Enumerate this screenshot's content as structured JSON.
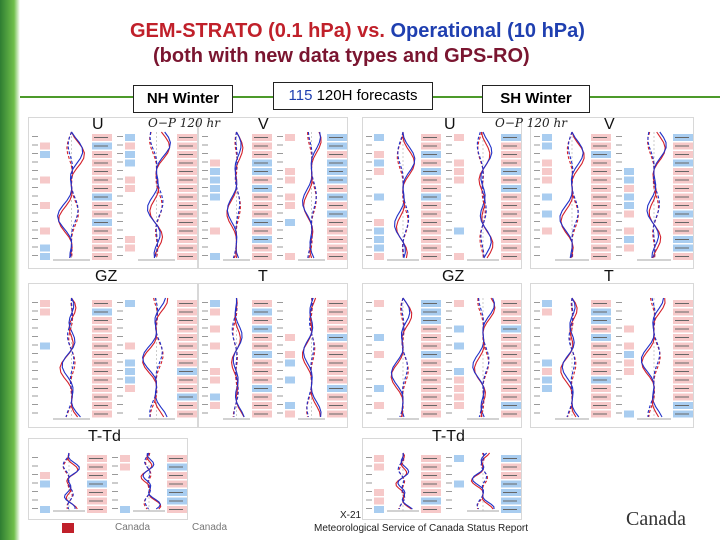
{
  "slide": {
    "title_line1_red": "GEM-STRATO (0.1 hPa)",
    "title_line1_mid": " vs. ",
    "title_line1_blue": "Operational (10 hPa)",
    "title_line2": "(both with new data types and GPS-RO)"
  },
  "labels": {
    "nh_winter": "NH Winter",
    "forecast_num": "115",
    "forecast_text": " 120H forecasts",
    "sh_winter": "SH Winter"
  },
  "panels": [
    {
      "id": "nh-u",
      "var_label": "U",
      "header_label": "O−P  120  hr"
    },
    {
      "id": "nh-v",
      "var_label": "V",
      "header_label": ""
    },
    {
      "id": "nh-gz",
      "var_label": "GZ",
      "header_label": ""
    },
    {
      "id": "nh-t",
      "var_label": "T",
      "header_label": ""
    },
    {
      "id": "nh-ttd",
      "var_label": "T-Td",
      "header_label": ""
    },
    {
      "id": "sh-u",
      "var_label": "U",
      "header_label": "O−P  120  hr"
    },
    {
      "id": "sh-v",
      "var_label": "V",
      "header_label": ""
    },
    {
      "id": "sh-gz",
      "var_label": "GZ",
      "header_label": ""
    },
    {
      "id": "sh-t",
      "var_label": "T",
      "header_label": ""
    },
    {
      "id": "sh-ttd",
      "var_label": "T-Td",
      "header_label": ""
    }
  ],
  "footer": {
    "page": "X-21",
    "report": "Meteorological Service of Canada Status Report",
    "left1": "Canada",
    "left2": "Canada",
    "logo_text": "Canada"
  },
  "colors": {
    "title_red": "#c0202a",
    "title_blue": "#1f3fb0",
    "title_dark": "#7a1530",
    "accent_green": "#4c9a2a",
    "line_red": "#d4202a",
    "line_blue": "#2030c8",
    "table_pink": "#f6c9c9",
    "table_blue": "#a9cdf0"
  }
}
